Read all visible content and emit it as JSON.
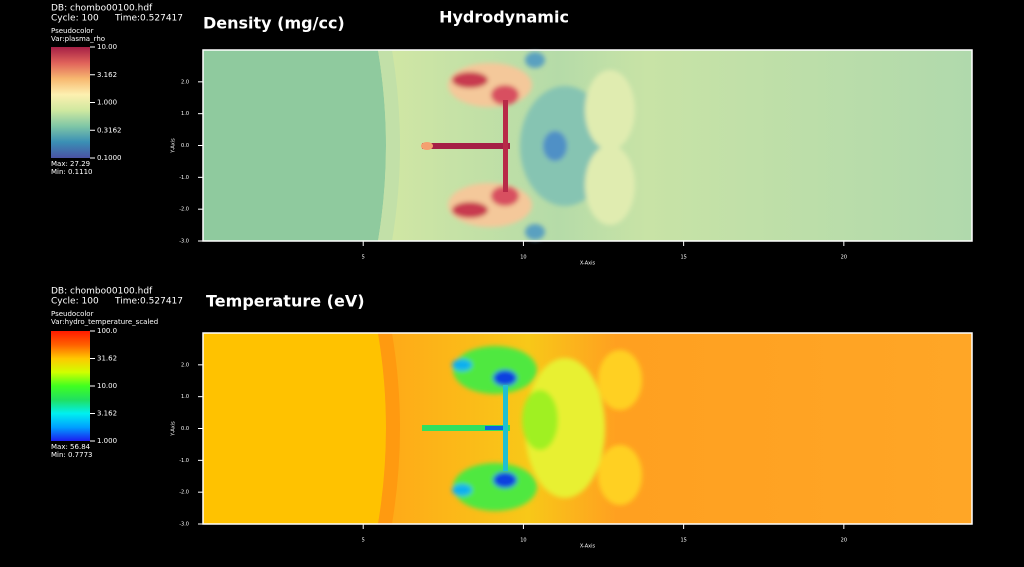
{
  "title": "Hydrodynamic",
  "chart_data": [
    {
      "type": "heatmap",
      "title": "Density (mg/cc)",
      "db": "DB: chombo00100.hdf",
      "cycle": "Cycle: 100",
      "time": "Time:0.527417",
      "plot": "Pseudocolor",
      "var": "Var:plasma_rho",
      "max": "Max: 27.29",
      "min": "Min: 0.1110",
      "xlabel": "X-Axis",
      "ylabel": "Y-Axis",
      "xlim": [
        0,
        24
      ],
      "ylim": [
        -3,
        3
      ],
      "xticks": [
        5,
        10,
        15,
        20
      ],
      "yticks": [
        {
          "value": 2,
          "label": "2.0"
        },
        {
          "value": 1,
          "label": "1.0"
        },
        {
          "value": 0,
          "label": "0.0"
        },
        {
          "value": -1,
          "label": "-1.0"
        },
        {
          "value": -2,
          "label": "-2.0"
        },
        {
          "value": -3,
          "label": "-3.0"
        }
      ],
      "color_scale": "log",
      "clim": [
        0.1,
        10
      ],
      "cticks": [
        {
          "value": 10,
          "label": "10.00"
        },
        {
          "value": 3.162,
          "label": "3.162"
        },
        {
          "value": 1,
          "label": "1.000"
        },
        {
          "value": 0.3162,
          "label": "0.3162"
        },
        {
          "value": 0.1,
          "label": "0.1000"
        }
      ],
      "colormap": [
        "#4a52a3",
        "#3a8fb5",
        "#7fc6a6",
        "#cfe8a0",
        "#fdf0b0",
        "#f7b870",
        "#e0625a",
        "#a51f45"
      ]
    },
    {
      "type": "heatmap",
      "title": "Temperature (eV)",
      "db": "DB: chombo00100.hdf",
      "cycle": "Cycle: 100",
      "time": "Time:0.527417",
      "plot": "Pseudocolor",
      "var": "Var:hydro_temperature_scaled",
      "max": "Max: 56.84",
      "min": "Min: 0.7773",
      "xlabel": "X-Axis",
      "ylabel": "Y-Axis",
      "xlim": [
        0,
        24
      ],
      "ylim": [
        -3,
        3
      ],
      "xticks": [
        5,
        10,
        15,
        20
      ],
      "yticks": [
        {
          "value": 2,
          "label": "2.0"
        },
        {
          "value": 1,
          "label": "1.0"
        },
        {
          "value": 0,
          "label": "0.0"
        },
        {
          "value": -1,
          "label": "-1.0"
        },
        {
          "value": -2,
          "label": "-2.0"
        },
        {
          "value": -3,
          "label": "-3.0"
        }
      ],
      "color_scale": "log",
      "clim": [
        1,
        100
      ],
      "cticks": [
        {
          "value": 100,
          "label": "100.0"
        },
        {
          "value": 31.62,
          "label": "31.62"
        },
        {
          "value": 10,
          "label": "10.00"
        },
        {
          "value": 3.162,
          "label": "3.162"
        },
        {
          "value": 1,
          "label": "1.000"
        }
      ],
      "colormap": [
        "#1c1cf0",
        "#00a0ff",
        "#00f0f0",
        "#20e060",
        "#40ff20",
        "#d0ff00",
        "#ffc800",
        "#ff6000",
        "#ff1a00"
      ]
    }
  ]
}
